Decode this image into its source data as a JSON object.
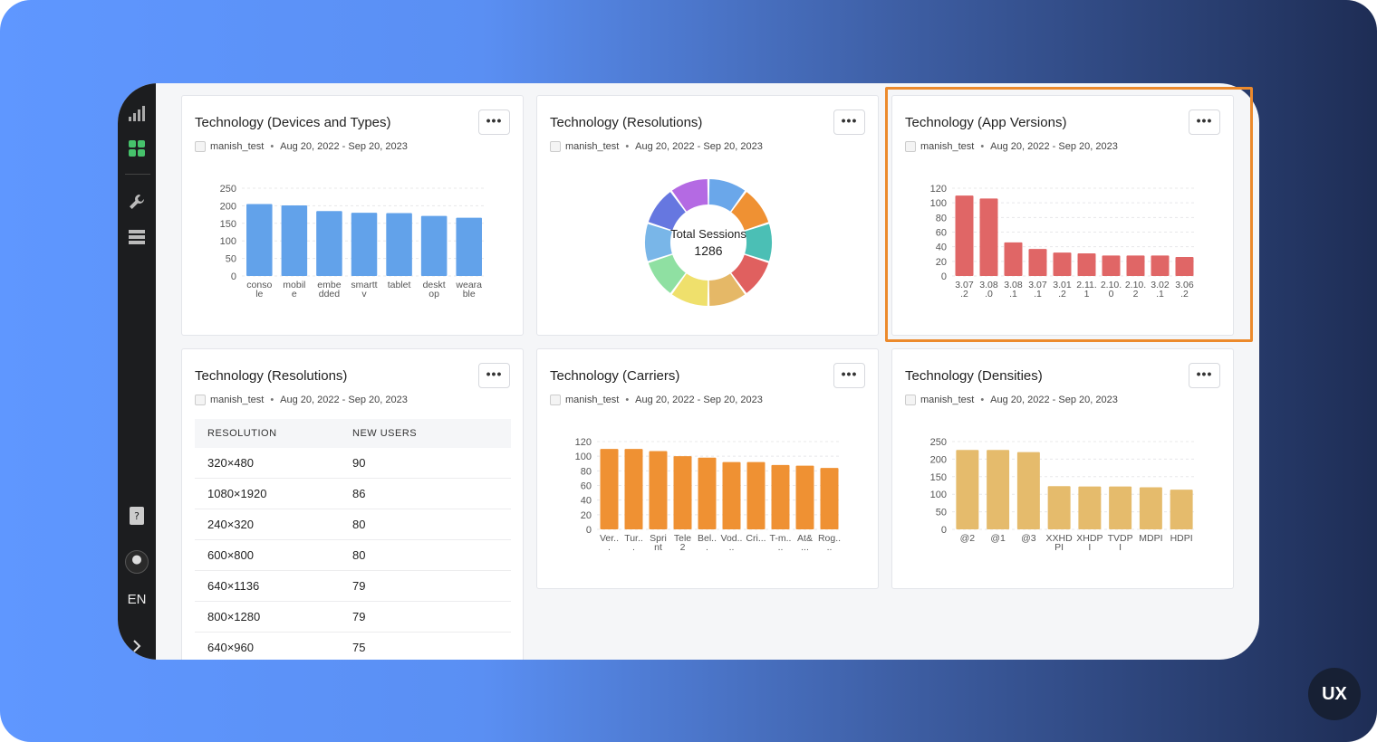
{
  "sidebar": {
    "icons": [
      "bar-chart-icon",
      "dashboard-grid-icon",
      "wrench-icon",
      "server-icon",
      "help-icon"
    ],
    "language": "EN"
  },
  "common": {
    "project": "manish_test",
    "date_range": "Aug 20, 2022 - Sep 20, 2023",
    "menu_label": "•••",
    "dot": "•"
  },
  "colors": {
    "devices_bar": "#62a2ea",
    "versions_bar": "#e06666",
    "carriers_bar": "#ef9133",
    "densities_bar": "#e5bb6c",
    "highlight": "#ec8a2c"
  },
  "cards": {
    "devices": {
      "title": "Technology (Devices and Types)"
    },
    "resolutions_donut": {
      "title": "Technology (Resolutions)",
      "center_label": "Total Sessions",
      "center_value": "1286"
    },
    "app_versions": {
      "title": "Technology (App Versions)"
    },
    "resolutions_table": {
      "title": "Technology (Resolutions)",
      "headers": [
        "RESOLUTION",
        "NEW USERS"
      ],
      "rows": [
        [
          "320×480",
          "90"
        ],
        [
          "1080×1920",
          "86"
        ],
        [
          "240×320",
          "80"
        ],
        [
          "600×800",
          "80"
        ],
        [
          "640×1136",
          "79"
        ],
        [
          "800×1280",
          "79"
        ],
        [
          "640×960",
          "75"
        ]
      ]
    },
    "carriers": {
      "title": "Technology (Carriers)"
    },
    "densities": {
      "title": "Technology (Densities)"
    }
  },
  "chart_data": [
    {
      "id": "devices",
      "type": "bar",
      "categories": [
        [
          "conso",
          "le"
        ],
        [
          "mobil",
          "e"
        ],
        [
          "embe",
          "dded"
        ],
        [
          "smartt",
          "v"
        ],
        [
          "tablet"
        ],
        [
          "deskt",
          "op"
        ],
        [
          "weara",
          "ble"
        ]
      ],
      "values": [
        205,
        201,
        185,
        180,
        179,
        171,
        166
      ],
      "ylim": [
        0,
        250
      ],
      "yticks": [
        0,
        50,
        100,
        150,
        200,
        250
      ],
      "color": "#62a2ea"
    },
    {
      "id": "resolutions",
      "type": "pie",
      "slices": [
        {
          "value": 1,
          "color": "#6aa7ea"
        },
        {
          "value": 1,
          "color": "#ef9133"
        },
        {
          "value": 1,
          "color": "#4bbfb5"
        },
        {
          "value": 1,
          "color": "#e0605f"
        },
        {
          "value": 1,
          "color": "#e5b867"
        },
        {
          "value": 1,
          "color": "#efe06c"
        },
        {
          "value": 1,
          "color": "#8fe0a2"
        },
        {
          "value": 1,
          "color": "#79b6e8"
        },
        {
          "value": 1,
          "color": "#6677e0"
        },
        {
          "value": 1,
          "color": "#b46ae3"
        }
      ],
      "total": 1286
    },
    {
      "id": "versions",
      "type": "bar",
      "categories": [
        [
          "3.07",
          ".2"
        ],
        [
          "3.08",
          ".0"
        ],
        [
          "3.08",
          ".1"
        ],
        [
          "3.07",
          ".1"
        ],
        [
          "3.01",
          ".2"
        ],
        [
          "2.11.",
          "1"
        ],
        [
          "2.10.",
          "0"
        ],
        [
          "2.10.",
          "2"
        ],
        [
          "3.02",
          ".1"
        ],
        [
          "3.06",
          ".2"
        ]
      ],
      "values": [
        110,
        106,
        46,
        37,
        32,
        31,
        28,
        28,
        28,
        26
      ],
      "ylim": [
        0,
        120
      ],
      "yticks": [
        0,
        20,
        40,
        60,
        80,
        100,
        120
      ],
      "color": "#e06666"
    },
    {
      "id": "carriers",
      "type": "bar",
      "categories": [
        [
          "Ver..",
          "."
        ],
        [
          "Tur..",
          "."
        ],
        [
          "Spri",
          "nt"
        ],
        [
          "Tele",
          "2"
        ],
        [
          "Bel..",
          "."
        ],
        [
          "Vod..",
          ".."
        ],
        [
          "Cri...",
          ""
        ],
        [
          "T-m..",
          ".."
        ],
        [
          "At&",
          "..."
        ],
        [
          "Rog..",
          ".."
        ]
      ],
      "values": [
        110,
        110,
        107,
        100,
        98,
        92,
        92,
        88,
        87,
        84
      ],
      "ylim": [
        0,
        120
      ],
      "yticks": [
        0,
        20,
        40,
        60,
        80,
        100,
        120
      ],
      "color": "#ef9133"
    },
    {
      "id": "densities",
      "type": "bar",
      "categories": [
        [
          "@2"
        ],
        [
          "@1"
        ],
        [
          "@3"
        ],
        [
          "XXHD",
          "PI"
        ],
        [
          "XHDP",
          "I"
        ],
        [
          "TVDP",
          "I"
        ],
        [
          "MDPI"
        ],
        [
          "HDPI"
        ]
      ],
      "values": [
        226,
        226,
        220,
        123,
        122,
        122,
        120,
        113
      ],
      "ylim": [
        0,
        250
      ],
      "yticks": [
        0,
        50,
        100,
        150,
        200,
        250
      ],
      "color": "#e5bb6c"
    }
  ],
  "badge": "UX"
}
